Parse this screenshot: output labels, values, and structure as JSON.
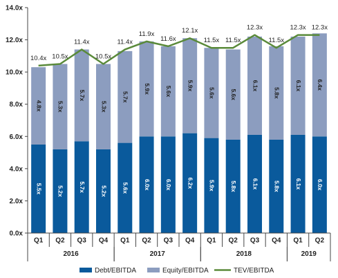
{
  "chart_data": {
    "type": "bar",
    "stacked": true,
    "categories": [
      "Q1",
      "Q2",
      "Q3",
      "Q4",
      "Q1",
      "Q2",
      "Q3",
      "Q4",
      "Q1",
      "Q2",
      "Q3",
      "Q4",
      "Q1",
      "Q2"
    ],
    "years": [
      {
        "label": "2016",
        "start": 0,
        "end": 3
      },
      {
        "label": "2017",
        "start": 4,
        "end": 7
      },
      {
        "label": "2018",
        "start": 8,
        "end": 11
      },
      {
        "label": "2019",
        "start": 12,
        "end": 13
      }
    ],
    "series": [
      {
        "name": "Debt/EBITDA",
        "color": "#0a5a9c",
        "values": [
          5.5,
          5.2,
          5.7,
          5.2,
          5.6,
          6.0,
          6.0,
          6.2,
          5.9,
          5.8,
          6.1,
          5.8,
          6.1,
          6.0
        ],
        "labels": [
          "5.5x",
          "5.2x",
          "5.7x",
          "5.2x",
          "5.6x",
          "6.0x",
          "6.0x",
          "6.2x",
          "5.9x",
          "5.8x",
          "6.1x",
          "5.8x",
          "6.1x",
          "6.0x"
        ]
      },
      {
        "name": "Equity/EBITDA",
        "color": "#8c9dbf",
        "values": [
          4.8,
          5.3,
          5.7,
          5.3,
          5.7,
          5.9,
          5.6,
          5.9,
          5.6,
          5.6,
          6.1,
          5.8,
          6.1,
          6.4
        ],
        "labels": [
          "4.8x",
          "5.3x",
          "5.7x",
          "5.3x",
          "5.7x",
          "5.9x",
          "5.6x",
          "5.9x",
          "5.6x",
          "5.6x",
          "6.1x",
          "5.8x",
          "6.1x",
          "6.4x"
        ]
      }
    ],
    "line_series": {
      "name": "TEV/EBITDA",
      "color": "#5a8a3a",
      "values": [
        10.4,
        10.5,
        11.4,
        10.5,
        11.4,
        11.9,
        11.6,
        12.1,
        11.5,
        11.5,
        12.3,
        11.5,
        12.3,
        12.3
      ],
      "labels": [
        "10.4x",
        "10.5x",
        "11.4x",
        "10.5x",
        "11.4x",
        "11.9x",
        "11.6x",
        "12.1x",
        "11.5x",
        "11.5x",
        "12.3x",
        "11.5x",
        "12.3x",
        "12.3x"
      ]
    },
    "ylim": [
      0,
      14
    ],
    "yticks": [
      "0.0x",
      "2.0x",
      "4.0x",
      "6.0x",
      "8.0x",
      "10.0x",
      "12.0x",
      "14.0x"
    ],
    "ytick_values": [
      0,
      2,
      4,
      6,
      8,
      10,
      12,
      14
    ],
    "grid": false,
    "legend_position": "bottom"
  }
}
